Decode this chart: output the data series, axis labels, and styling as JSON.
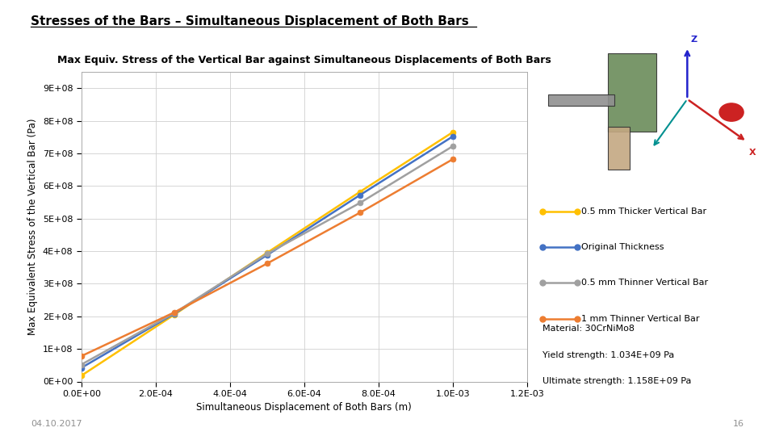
{
  "title_main": "Stresses of the Bars – Simultaneous Displacement of Both Bars",
  "title_chart": "Max Equiv. Stress of the Vertical Bar against Simultaneous Displacements of Both Bars",
  "xlabel": "Simultaneous Displacement of Both Bars (m)",
  "ylabel": "Max Equivalent Stress of the Vertical Bar (Pa)",
  "date_label": "04.10.2017",
  "page_label": "16",
  "x_data": [
    0.0,
    0.00025,
    0.0005,
    0.00075,
    0.001
  ],
  "series": [
    {
      "label": "0.5 mm Thicker Vertical Bar",
      "color": "#FFC000",
      "y_data": [
        18000000.0,
        205000000.0,
        395000000.0,
        582000000.0,
        765000000.0
      ]
    },
    {
      "label": "Original Thickness",
      "color": "#4472C4",
      "y_data": [
        42000000.0,
        208000000.0,
        388000000.0,
        572000000.0,
        752000000.0
      ]
    },
    {
      "label": "0.5 mm Thinner Vertical Bar",
      "color": "#A0A0A0",
      "y_data": [
        52000000.0,
        210000000.0,
        392000000.0,
        548000000.0,
        722000000.0
      ]
    },
    {
      "label": "1 mm Thinner Vertical Bar",
      "color": "#ED7D31",
      "y_data": [
        78000000.0,
        212000000.0,
        362000000.0,
        518000000.0,
        682000000.0
      ]
    }
  ],
  "xlim": [
    0.0,
    0.0012
  ],
  "ylim": [
    0.0,
    950000000.0
  ],
  "xticks": [
    0.0,
    0.0002,
    0.0004,
    0.0006,
    0.0008,
    0.001,
    0.0012
  ],
  "yticks": [
    0.0,
    100000000.0,
    200000000.0,
    300000000.0,
    400000000.0,
    500000000.0,
    600000000.0,
    700000000.0,
    800000000.0,
    900000000.0
  ],
  "material_text_lines": [
    "Material: 30CrNiMo8",
    "Yield strength: 1.034E+09 Pa",
    "Ultimate strength: 1.158E+09 Pa"
  ],
  "background_color": "#FFFFFF",
  "grid_color": "#D0D0D0",
  "image_bg_color": "#C8DCE8"
}
